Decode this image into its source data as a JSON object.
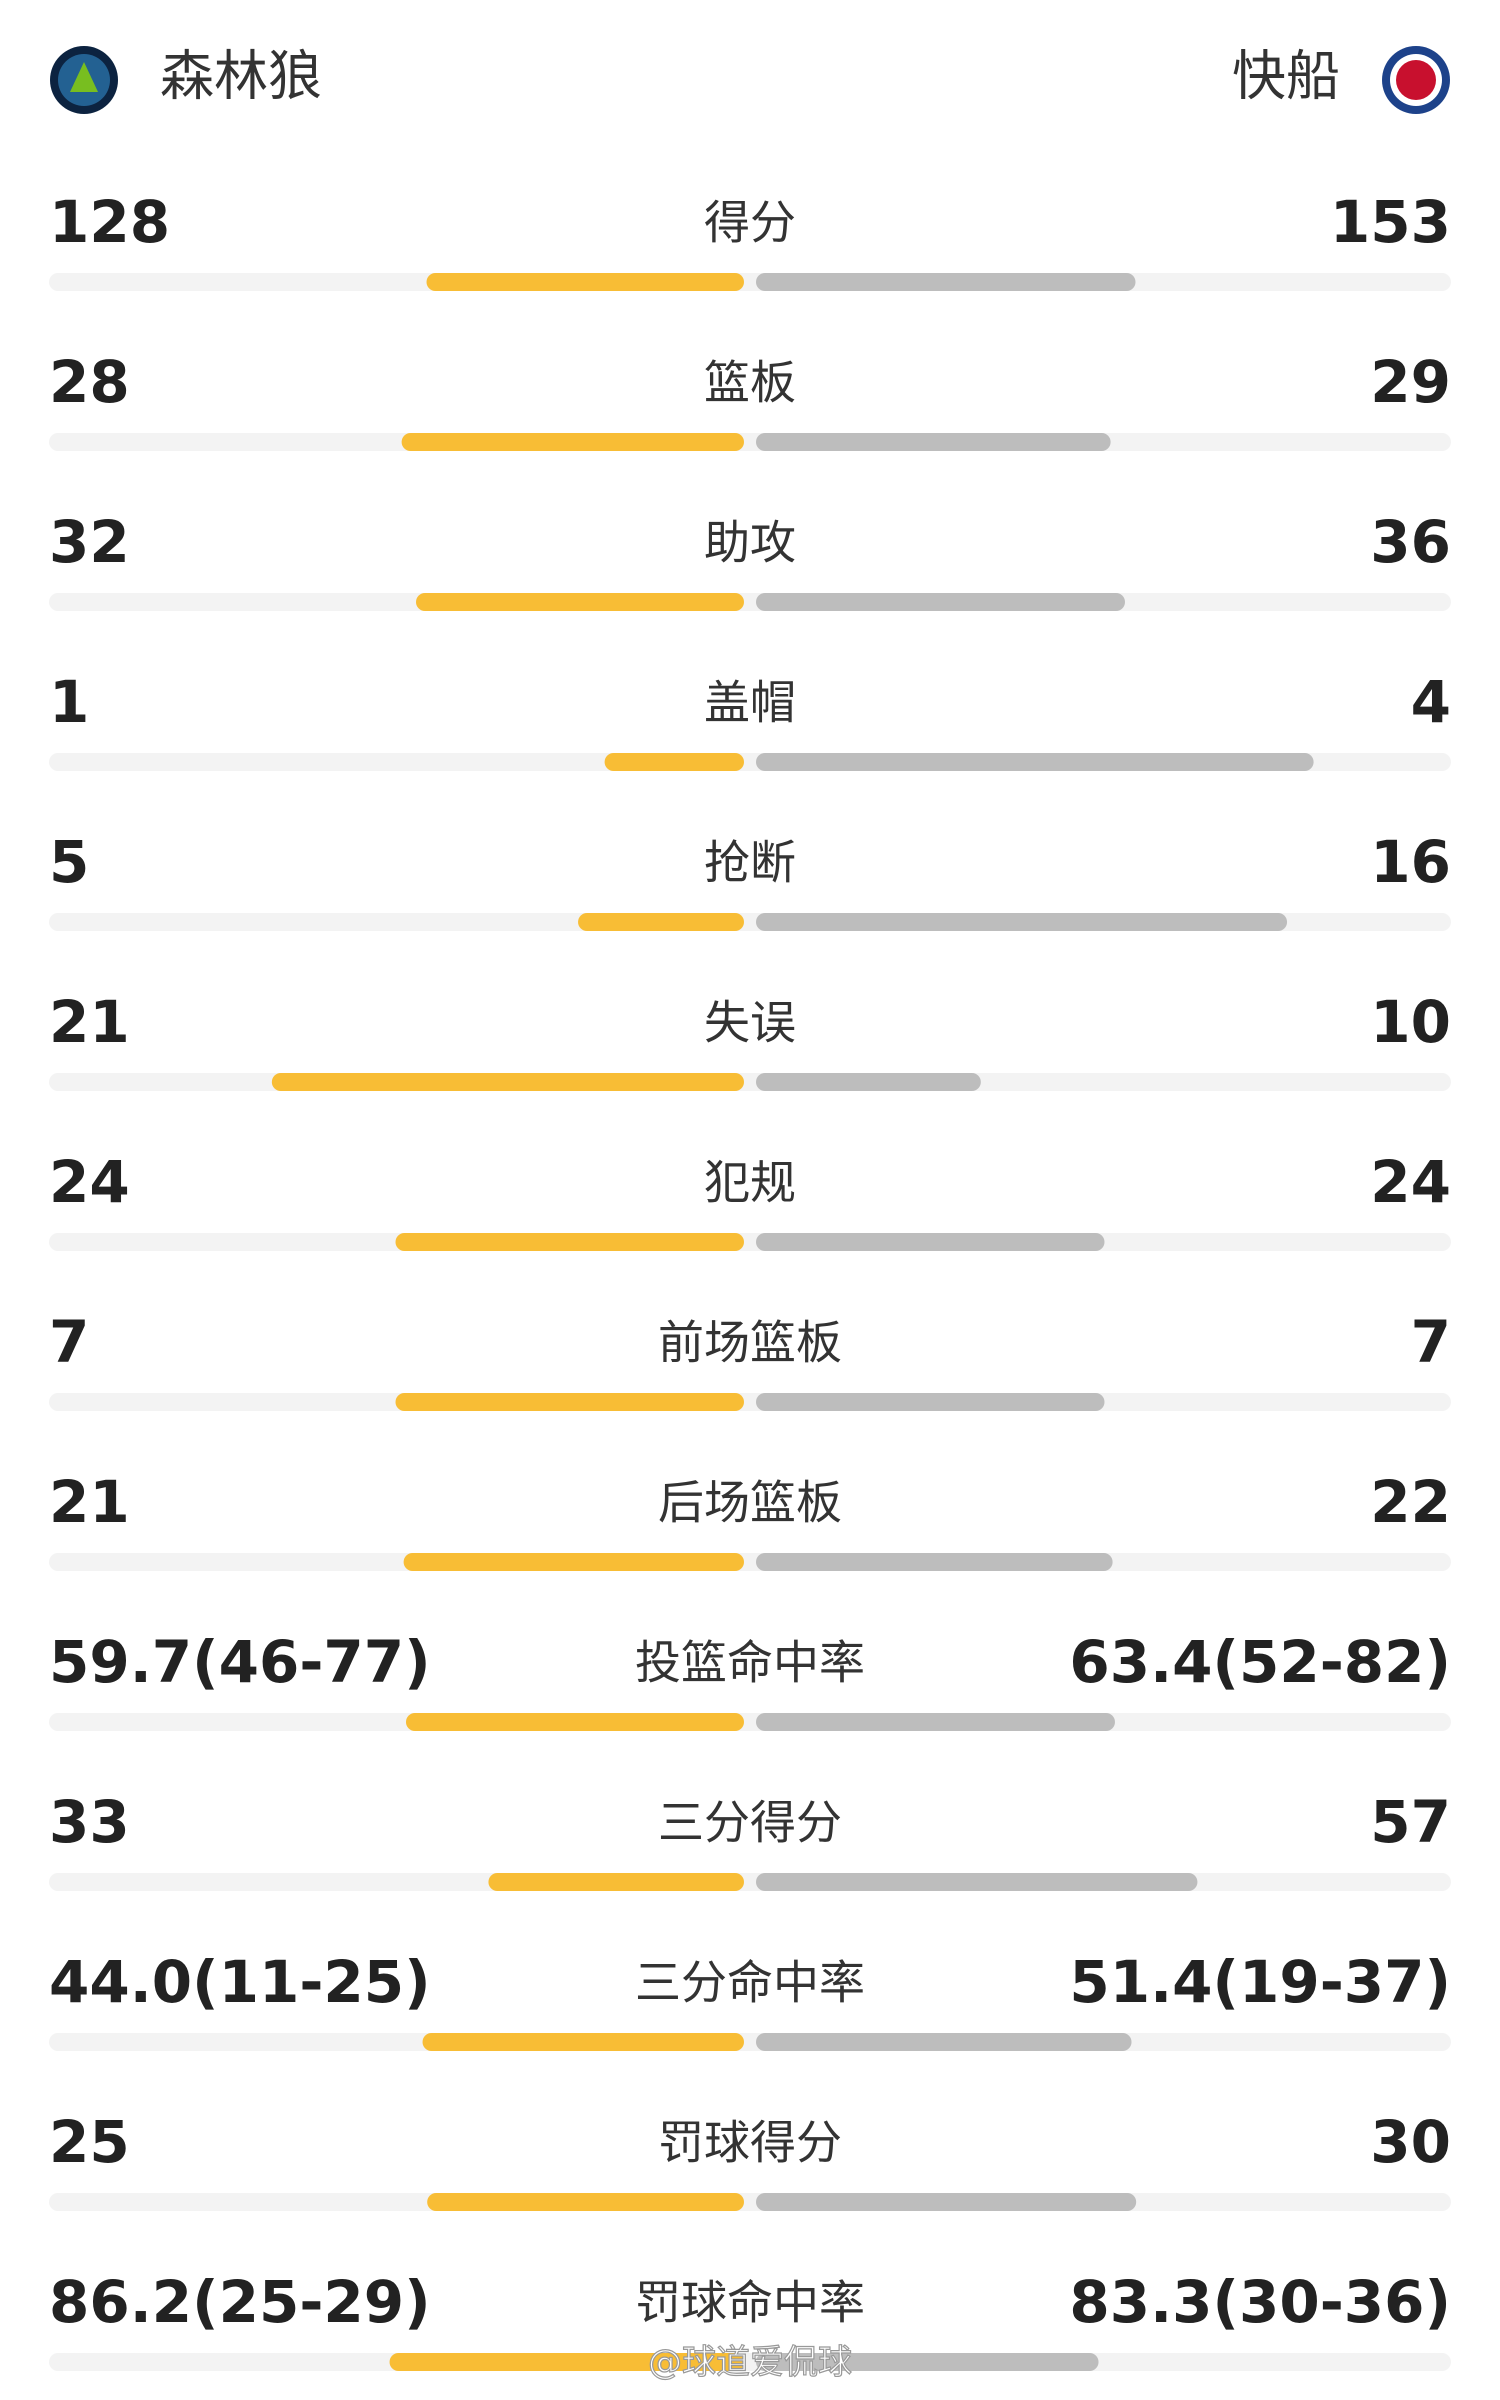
{
  "header": {
    "home_team": "森林狼",
    "away_team": "快船"
  },
  "stats": [
    {
      "label": "得分",
      "home": 128,
      "away": 153
    },
    {
      "label": "篮板",
      "home": 28,
      "away": 29
    },
    {
      "label": "助攻",
      "home": 32,
      "away": 36
    },
    {
      "label": "盖帽",
      "home": 1,
      "away": 4
    },
    {
      "label": "抢断",
      "home": 5,
      "away": 16
    },
    {
      "label": "失误",
      "home": 21,
      "away": 10
    },
    {
      "label": "犯规",
      "home": 24,
      "away": 24
    },
    {
      "label": "前场篮板",
      "home": 7,
      "away": 7
    },
    {
      "label": "后场篮板",
      "home": 21,
      "away": 22
    },
    {
      "label": "投篮命中率",
      "home": {
        "value": 59.7,
        "label": "59.7(46-77)"
      },
      "away": {
        "value": 63.4,
        "label": "63.4(52-82)"
      }
    },
    {
      "label": "三分得分",
      "home": 33,
      "away": 57
    },
    {
      "label": "三分命中率",
      "home": {
        "value": 44.0,
        "label": "44.0(11-25)"
      },
      "away": {
        "value": 51.4,
        "label": "51.4(19-37)"
      }
    },
    {
      "label": "罚球得分",
      "home": 25,
      "away": 30
    },
    {
      "label": "罚球命中率",
      "home": {
        "value": 86.2,
        "label": "86.2(25-29)"
      },
      "away": {
        "value": 83.3,
        "label": "83.3(30-36)"
      }
    }
  ],
  "watermark": "@球道爱侃球"
}
